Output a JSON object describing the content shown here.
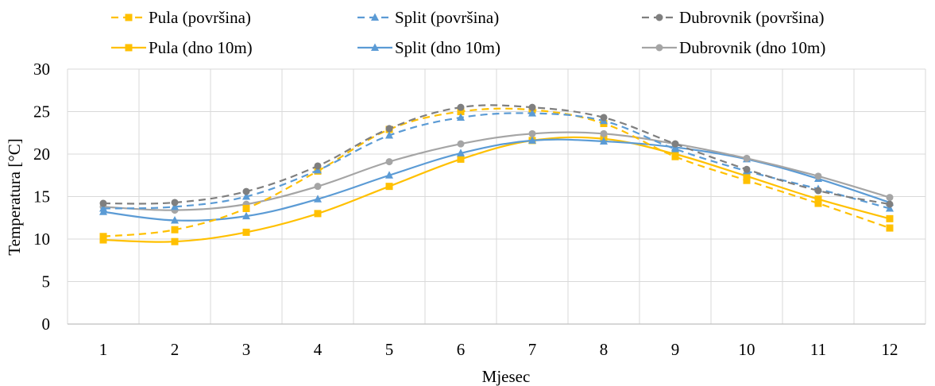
{
  "chart_data": {
    "type": "line",
    "title": "",
    "xlabel": "Mjesec",
    "ylabel": "Temperatura  [°C]",
    "categories": [
      "1",
      "2",
      "3",
      "4",
      "5",
      "6",
      "7",
      "8",
      "9",
      "10",
      "11",
      "12"
    ],
    "ylim": [
      0,
      30
    ],
    "yticks": [
      "0",
      "5",
      "10",
      "15",
      "20",
      "25",
      "30"
    ],
    "grid": "vertical and horizontal",
    "legend_position": "top",
    "series": [
      {
        "name": "Pula (površina)",
        "values": [
          10.3,
          11.1,
          13.6,
          18.0,
          22.9,
          25.0,
          25.2,
          23.6,
          19.7,
          16.9,
          14.2,
          11.3
        ],
        "color": "#FFC000",
        "dash": true,
        "marker": "square"
      },
      {
        "name": "Split (površina)",
        "values": [
          13.6,
          13.8,
          15.0,
          18.1,
          22.2,
          24.3,
          24.8,
          23.9,
          20.6,
          18.0,
          15.9,
          13.6
        ],
        "color": "#5B9BD5",
        "dash": true,
        "marker": "triangle"
      },
      {
        "name": "Dubrovnik (površina)",
        "values": [
          14.2,
          14.3,
          15.6,
          18.6,
          23.0,
          25.5,
          25.5,
          24.3,
          21.2,
          18.2,
          15.7,
          14.1
        ],
        "color": "#7F7F7F",
        "dash": true,
        "marker": "circle"
      },
      {
        "name": "Pula (dno 10m)",
        "values": [
          9.9,
          9.7,
          10.8,
          13.0,
          16.2,
          19.4,
          21.6,
          21.8,
          20.0,
          17.4,
          14.7,
          12.4
        ],
        "color": "#FFC000",
        "dash": false,
        "marker": "square"
      },
      {
        "name": "Split (dno 10m)",
        "values": [
          13.2,
          12.2,
          12.7,
          14.7,
          17.5,
          20.1,
          21.6,
          21.5,
          20.8,
          19.4,
          17.1,
          14.3
        ],
        "color": "#5B9BD5",
        "dash": false,
        "marker": "triangle"
      },
      {
        "name": "Dubrovnik (dno 10m)",
        "values": [
          13.8,
          13.4,
          14.1,
          16.2,
          19.1,
          21.2,
          22.4,
          22.4,
          21.2,
          19.5,
          17.4,
          14.9
        ],
        "color": "#A5A5A5",
        "dash": false,
        "marker": "circle"
      }
    ]
  }
}
